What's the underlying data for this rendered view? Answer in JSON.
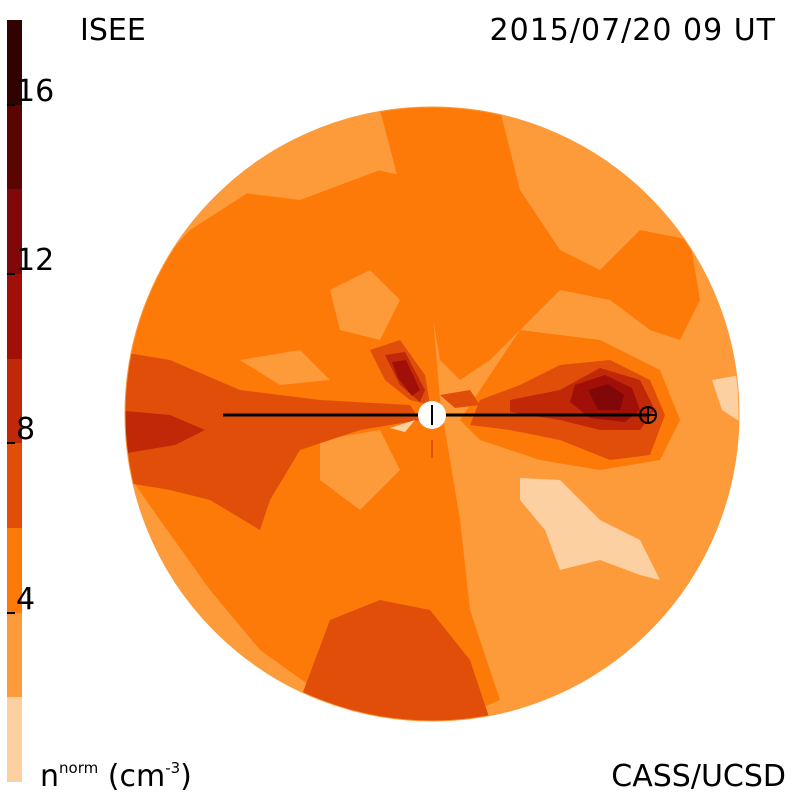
{
  "header": {
    "title": "ISEE",
    "timestamp": "2015/07/20 09 UT"
  },
  "footer": {
    "credit": "CASS/UCSD",
    "quantity": "n",
    "quantity_superscript": "norm",
    "unit_prefix": "(cm",
    "unit_exponent": "-3",
    "unit_suffix": ")"
  },
  "colorbar": {
    "ticks": [
      {
        "label": "16",
        "value": 16
      },
      {
        "label": "12",
        "value": 12
      },
      {
        "label": "8",
        "value": 8
      },
      {
        "label": "4",
        "value": 4
      }
    ],
    "levels": [
      {
        "min": 0,
        "max": 2,
        "color": "#fdd0a2"
      },
      {
        "min": 2,
        "max": 4,
        "color": "#fd9a3a"
      },
      {
        "min": 4,
        "max": 6,
        "color": "#fd7a08"
      },
      {
        "min": 6,
        "max": 8,
        "color": "#e04e0a"
      },
      {
        "min": 8,
        "max": 10,
        "color": "#c02808"
      },
      {
        "min": 10,
        "max": 12,
        "color": "#a01008"
      },
      {
        "min": 12,
        "max": 14,
        "color": "#800808"
      },
      {
        "min": 14,
        "max": 16,
        "color": "#5a0404"
      },
      {
        "min": 16,
        "max": 18,
        "color": "#300200"
      }
    ],
    "range": [
      0,
      18
    ]
  },
  "map": {
    "markers": [
      {
        "name": "sun",
        "symbol": "sun-disk"
      },
      {
        "name": "earth",
        "symbol": "earth-circle-plus"
      }
    ]
  }
}
